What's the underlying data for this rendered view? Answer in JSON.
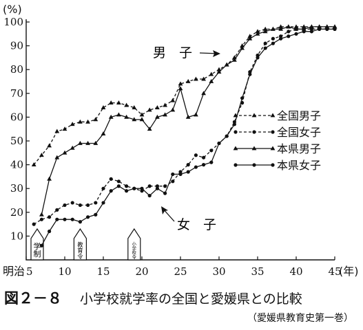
{
  "chart_data": {
    "type": "line",
    "ylabel": "(%)",
    "xlabel": "(年)",
    "x_era_label": "明治",
    "xlim": [
      5,
      45
    ],
    "ylim": [
      0,
      100
    ],
    "yticks": [
      10,
      20,
      30,
      40,
      50,
      60,
      70,
      80,
      90,
      100
    ],
    "xticks": [
      5,
      10,
      15,
      20,
      25,
      30,
      35,
      40,
      45
    ],
    "legend_position": "middle-right",
    "annotations": {
      "boys": "男　子",
      "girls": "女　子"
    },
    "markers": [
      {
        "x": 5,
        "label": "学制"
      },
      {
        "x": 12,
        "label": "教育令"
      },
      {
        "x": 19,
        "label": "小学校令"
      }
    ],
    "series": [
      {
        "name": "全国男子",
        "style": "dashed-triangle",
        "x": [
          6,
          7,
          8,
          9,
          10,
          11,
          12,
          13,
          14,
          15,
          16,
          17,
          18,
          19,
          20,
          21,
          22,
          23,
          24,
          25,
          26,
          27,
          28,
          29,
          30,
          31,
          32,
          33,
          34,
          35,
          36,
          37,
          38,
          39,
          40,
          41,
          42,
          43,
          44,
          45
        ],
        "y": [
          40,
          44,
          48,
          54,
          55,
          57,
          58,
          58,
          59,
          64,
          66,
          66,
          65,
          64,
          61,
          63,
          64,
          65,
          67,
          74,
          75,
          76,
          76,
          78,
          80,
          82,
          85,
          90,
          94,
          96,
          97,
          97,
          98,
          98,
          98,
          98,
          98,
          98,
          98,
          98
        ]
      },
      {
        "name": "全国女子",
        "style": "dashed-circle",
        "x": [
          6,
          7,
          8,
          9,
          10,
          11,
          12,
          13,
          14,
          15,
          16,
          17,
          18,
          19,
          20,
          21,
          22,
          23,
          24,
          25,
          26,
          27,
          28,
          29,
          30,
          31,
          32,
          33,
          34,
          35,
          36,
          37,
          38,
          39,
          40,
          41,
          42,
          43,
          44,
          45
        ],
        "y": [
          15,
          17,
          18,
          21,
          23,
          24,
          23,
          23,
          24,
          30,
          34,
          33,
          31,
          30,
          29,
          31,
          31,
          31,
          33,
          37,
          40,
          44,
          43,
          46,
          49,
          52,
          58,
          66,
          79,
          86,
          91,
          93,
          94,
          96,
          97,
          97,
          97,
          97,
          97,
          97
        ]
      },
      {
        "name": "本県男子",
        "style": "solid-triangle",
        "x": [
          7,
          8,
          9,
          10,
          11,
          12,
          13,
          14,
          15,
          16,
          17,
          18,
          19,
          20,
          21,
          22,
          23,
          24,
          25,
          26,
          27,
          28,
          29,
          30,
          31,
          32,
          33,
          34,
          35,
          36,
          37,
          38,
          39,
          40,
          41,
          42,
          43,
          44,
          45
        ],
        "y": [
          19,
          34,
          43,
          45,
          47,
          49,
          49,
          49,
          53,
          60,
          61,
          60,
          59,
          59,
          55,
          60,
          61,
          63,
          72,
          60,
          61,
          70,
          75,
          79,
          82,
          84,
          89,
          93,
          95,
          96,
          97,
          97,
          98,
          97,
          97,
          98,
          98,
          98,
          98
        ]
      },
      {
        "name": "本県女子",
        "style": "solid-circle",
        "x": [
          7,
          8,
          9,
          10,
          11,
          12,
          13,
          14,
          15,
          16,
          17,
          18,
          19,
          20,
          21,
          22,
          23,
          24,
          25,
          26,
          27,
          28,
          29,
          30,
          31,
          32,
          33,
          34,
          35,
          36,
          37,
          38,
          39,
          40,
          41,
          42,
          43,
          44,
          45
        ],
        "y": [
          6,
          12,
          17,
          17,
          17,
          16,
          18,
          19,
          24,
          29,
          31,
          29,
          30,
          30,
          27,
          30,
          28,
          36,
          36,
          37,
          39,
          40,
          41,
          49,
          52,
          57,
          68,
          78,
          85,
          89,
          91,
          93,
          94,
          95,
          96,
          96,
          97,
          97,
          97
        ]
      }
    ]
  },
  "caption": {
    "figure_number": "図２－８",
    "title": "小学校就学率の全国と愛媛県との比較",
    "source": "（愛媛県教育史第一巻）"
  }
}
